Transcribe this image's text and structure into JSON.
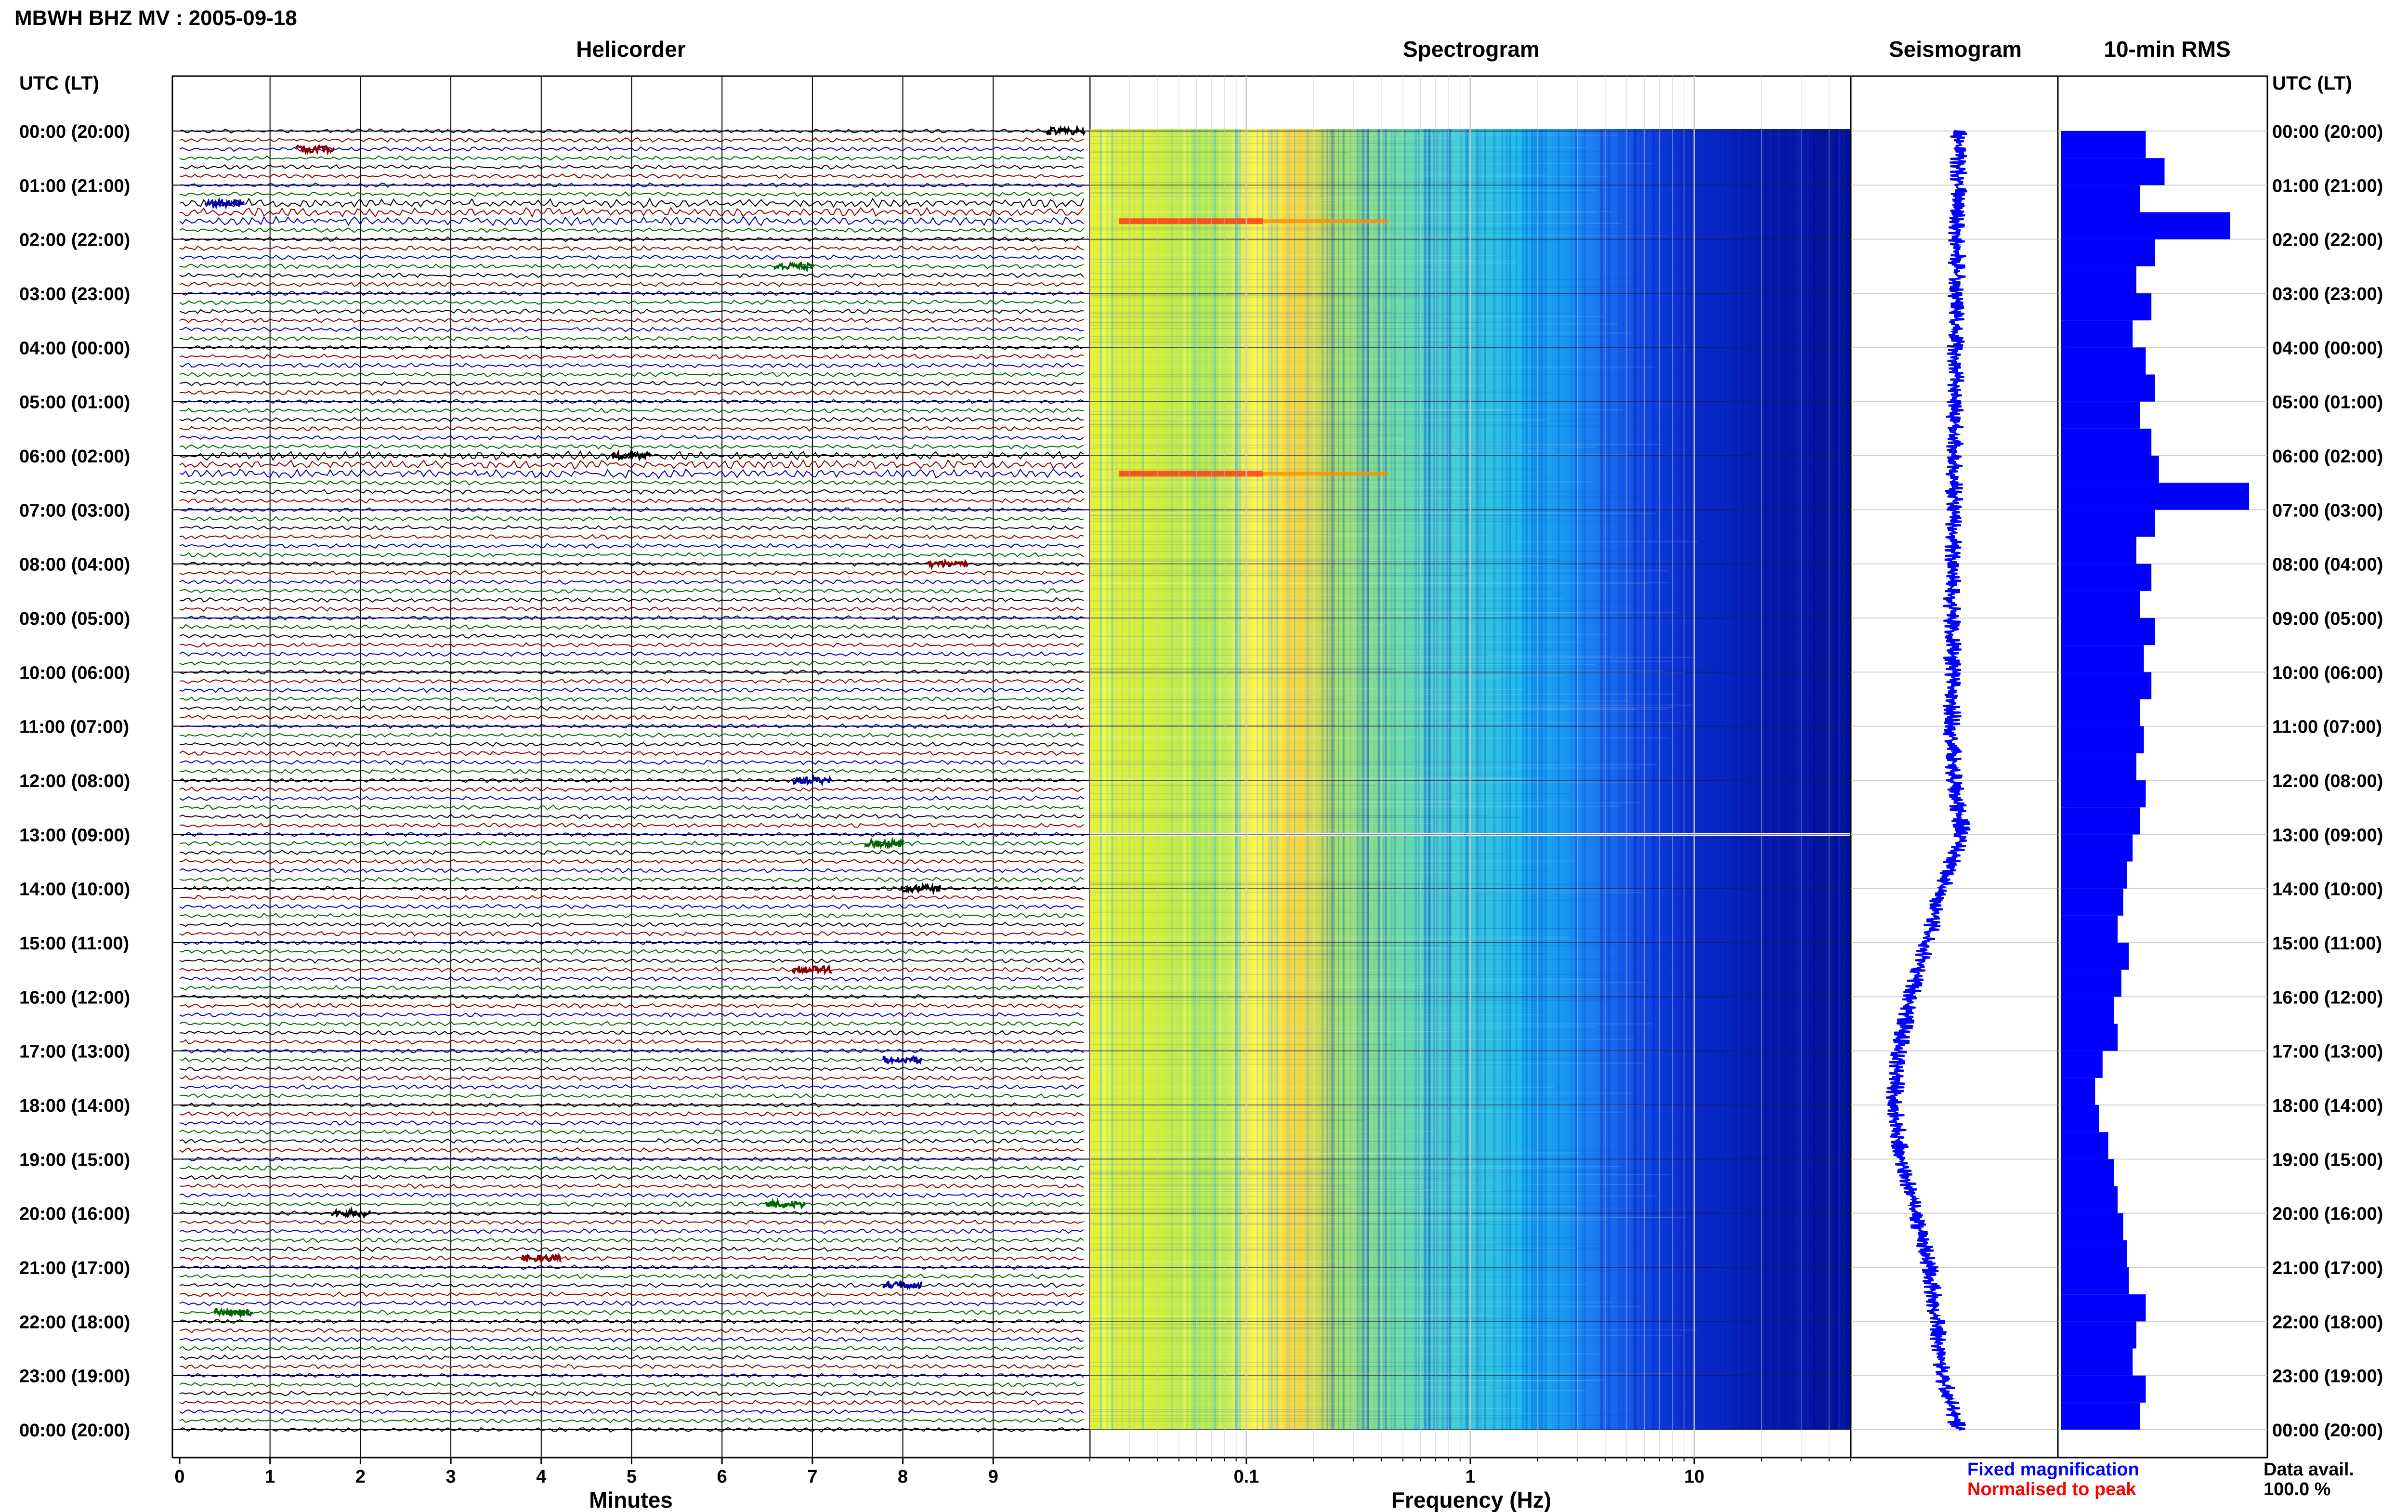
{
  "figure_title": "MBWH BHZ MV : 2005-09-18",
  "panels": {
    "helicorder": "Helicorder",
    "spectrogram": "Spectrogram",
    "seismogram": "Seismogram",
    "rms": "10-min RMS"
  },
  "left_axis_title": "UTC (LT)",
  "right_axis_title": "UTC (LT)",
  "time_labels": [
    "00:00 (20:00)",
    "01:00 (21:00)",
    "02:00 (22:00)",
    "03:00 (23:00)",
    "04:00 (00:00)",
    "05:00 (01:00)",
    "06:00 (02:00)",
    "07:00 (03:00)",
    "08:00 (04:00)",
    "09:00 (05:00)",
    "10:00 (06:00)",
    "11:00 (07:00)",
    "12:00 (08:00)",
    "13:00 (09:00)",
    "14:00 (10:00)",
    "15:00 (11:00)",
    "16:00 (12:00)",
    "17:00 (13:00)",
    "18:00 (14:00)",
    "19:00 (15:00)",
    "20:00 (16:00)",
    "21:00 (17:00)",
    "22:00 (18:00)",
    "23:00 (19:00)",
    "00:00 (20:00)"
  ],
  "legend": {
    "fixed": "Fixed magnification",
    "fixed_color": "#0000ff",
    "normalised": "Normalised to peak",
    "normalised_color": "#ff0000",
    "data_avail_label": "Data avail.",
    "data_avail_value": "100.0 %"
  },
  "colors": {
    "trace_cycle": [
      "#000000",
      "#8b0000",
      "#0000aa",
      "#006400"
    ],
    "spectrogram_scale": [
      "#00008b",
      "#0000ff",
      "#1e90ff",
      "#00ffff",
      "#7fff7f",
      "#ffff00",
      "#ff8c00",
      "#ff0000"
    ],
    "seismogram": "#0000ff",
    "rms": "#0000ff"
  },
  "chart_data": [
    {
      "type": "line",
      "panel": "Helicorder",
      "xlabel": "Minutes",
      "x_ticks": [
        "0",
        "1",
        "2",
        "3",
        "4",
        "5",
        "6",
        "7",
        "8",
        "9"
      ],
      "xlim": [
        0,
        10
      ],
      "traces_per_day": 144,
      "minutes_per_trace": 10,
      "notable_events": [
        {
          "time_utc": "00:00",
          "minute": 9.8
        },
        {
          "time_utc": "00:20",
          "minute": 1.5
        },
        {
          "time_utc": "01:20",
          "minute": 0.5
        },
        {
          "time_utc": "02:30",
          "minute": 6.8
        },
        {
          "time_utc": "06:00",
          "minute": 5.0
        },
        {
          "time_utc": "08:00",
          "minute": 8.5
        },
        {
          "time_utc": "12:00",
          "minute": 7.0
        },
        {
          "time_utc": "13:10",
          "minute": 7.8
        },
        {
          "time_utc": "14:00",
          "minute": 8.2
        },
        {
          "time_utc": "15:30",
          "minute": 7.0
        },
        {
          "time_utc": "17:10",
          "minute": 8.0
        },
        {
          "time_utc": "19:50",
          "minute": 6.7
        },
        {
          "time_utc": "20:00",
          "minute": 1.9
        },
        {
          "time_utc": "20:50",
          "minute": 4.0
        },
        {
          "time_utc": "21:20",
          "minute": 8.0
        },
        {
          "time_utc": "21:50",
          "minute": 0.6
        }
      ]
    },
    {
      "type": "heatmap",
      "panel": "Spectrogram",
      "xlabel": "Frequency (Hz)",
      "x_scale": "log",
      "x_ticks": [
        "0.1",
        "1",
        "10"
      ],
      "xlim": [
        0.02,
        50
      ],
      "gap_at_utc": "13:00",
      "peak_band_hz": [
        0.15,
        0.3
      ],
      "strong_events_utc": [
        "01:40",
        "06:20"
      ]
    },
    {
      "type": "line",
      "panel": "Seismogram",
      "ylabel": "UTC",
      "hours": [
        0,
        1,
        2,
        3,
        4,
        5,
        6,
        7,
        8,
        9,
        10,
        11,
        12,
        13,
        14,
        15,
        16,
        17,
        18,
        19,
        20,
        21,
        22,
        23,
        24
      ],
      "offset": [
        0.55,
        0.55,
        0.54,
        0.53,
        0.53,
        0.52,
        0.52,
        0.51,
        0.5,
        0.5,
        0.5,
        0.5,
        0.51,
        0.58,
        0.42,
        0.3,
        0.18,
        0.08,
        0.05,
        0.1,
        0.22,
        0.32,
        0.38,
        0.42,
        0.55
      ],
      "ylim": [
        0,
        24
      ]
    },
    {
      "type": "bar",
      "panel": "10-min RMS",
      "ylabel": "UTC",
      "hours": [
        0,
        0.5,
        1,
        1.5,
        2,
        2.5,
        3,
        3.5,
        4,
        4.5,
        5,
        5.5,
        6,
        6.5,
        7,
        7.5,
        8,
        8.5,
        9,
        9.5,
        10,
        10.5,
        11,
        11.5,
        12,
        12.5,
        13,
        13.5,
        14,
        14.5,
        15,
        15.5,
        16,
        16.5,
        17,
        17.5,
        18,
        18.5,
        19,
        19.5,
        20,
        20.5,
        21,
        21.5,
        22,
        22.5,
        23,
        23.5
      ],
      "values": [
        0.45,
        0.55,
        0.42,
        0.9,
        0.5,
        0.4,
        0.48,
        0.38,
        0.45,
        0.5,
        0.42,
        0.48,
        0.52,
        1.0,
        0.5,
        0.4,
        0.48,
        0.42,
        0.5,
        0.44,
        0.48,
        0.42,
        0.44,
        0.4,
        0.45,
        0.42,
        0.38,
        0.35,
        0.33,
        0.3,
        0.36,
        0.32,
        0.28,
        0.3,
        0.22,
        0.18,
        0.2,
        0.25,
        0.28,
        0.3,
        0.33,
        0.35,
        0.36,
        0.45,
        0.4,
        0.38,
        0.45,
        0.42
      ],
      "ylim": [
        0,
        24
      ]
    }
  ]
}
